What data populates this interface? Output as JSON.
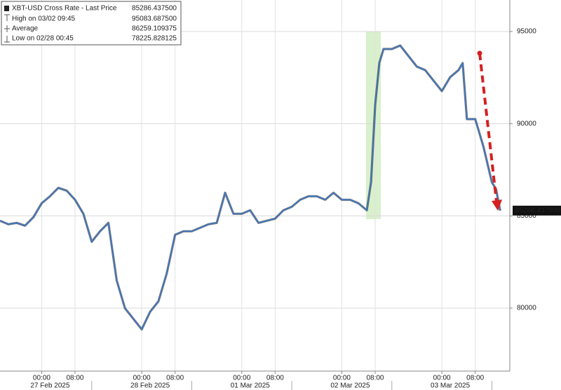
{
  "chart_data": {
    "type": "line",
    "legend": [
      {
        "name": "XBT-USD Cross Rate - Last Price",
        "value": 85286.4375,
        "label": "85286.437500"
      },
      {
        "name": "High on 03/02 09:45",
        "value": 95083.6875,
        "label": "95083.687500"
      },
      {
        "name": "Average",
        "value": 86259.109375,
        "label": "86259.109375"
      },
      {
        "name": "Low on 02/28 00:45",
        "value": 78225.828125,
        "label": "78225.828125"
      }
    ],
    "last_value": 85286.4375,
    "last_value_label": "85286.437500",
    "x": [
      -10,
      -8,
      -6,
      -4,
      -2,
      0,
      2,
      4,
      6,
      8,
      10,
      12,
      14,
      16,
      18,
      20,
      22,
      24,
      26,
      28,
      30,
      32,
      34,
      36,
      38,
      40,
      42,
      44,
      46,
      48,
      50,
      52,
      54,
      56,
      58,
      60,
      62,
      64,
      66,
      68,
      70,
      72,
      74,
      76,
      78,
      79,
      80,
      81,
      82,
      84,
      86,
      88,
      90,
      92,
      94,
      96,
      98,
      100,
      101,
      102,
      104,
      106,
      108,
      109,
      110
    ],
    "series": [
      {
        "name": "XBT-USD Cross Rate - Last Price",
        "color": "#3a76c4",
        "values": [
          84735,
          84544,
          84620,
          84468,
          84925,
          85685,
          86065,
          86521,
          86369,
          85875,
          85115,
          83594,
          84164,
          84620,
          81503,
          79982,
          79412,
          78842,
          79792,
          80362,
          81883,
          83974,
          84164,
          84164,
          84354,
          84544,
          84620,
          86255,
          85115,
          85115,
          85305,
          84620,
          84735,
          84849,
          85305,
          85495,
          85875,
          86065,
          86065,
          85875,
          86255,
          85875,
          85875,
          85685,
          85305,
          86826,
          91008,
          93289,
          94050,
          94050,
          94240,
          93669,
          93099,
          92909,
          92339,
          91768,
          92529,
          92909,
          93289,
          90248,
          90248,
          88727,
          86826,
          86445,
          85286.4375
        ]
      }
    ],
    "xlim": [
      -10,
      112.3
    ],
    "xticks": [
      {
        "value": 0,
        "label": "00:00"
      },
      {
        "value": 8,
        "label": "08:00"
      },
      {
        "value": 24,
        "label": "00:00"
      },
      {
        "value": 32,
        "label": "08:00"
      },
      {
        "value": 48,
        "label": "00:00"
      },
      {
        "value": 56,
        "label": "08:00"
      },
      {
        "value": 72,
        "label": "00:00"
      },
      {
        "value": 80,
        "label": "08:00"
      },
      {
        "value": 96,
        "label": "00:00"
      },
      {
        "value": 104,
        "label": "08:00"
      }
    ],
    "date_ticks": [
      {
        "value": 0,
        "label": "27 Feb 2025"
      },
      {
        "value": 24,
        "label": "28 Feb 2025"
      },
      {
        "value": 48,
        "label": "01 Mar 2025"
      },
      {
        "value": 72,
        "label": "02 Mar 2025"
      },
      {
        "value": 96,
        "label": "03 Mar 2025"
      }
    ],
    "ylim": [
      76580,
      96710
    ],
    "yticks": [
      80000,
      85000,
      90000,
      95000
    ],
    "grid": true
  }
}
